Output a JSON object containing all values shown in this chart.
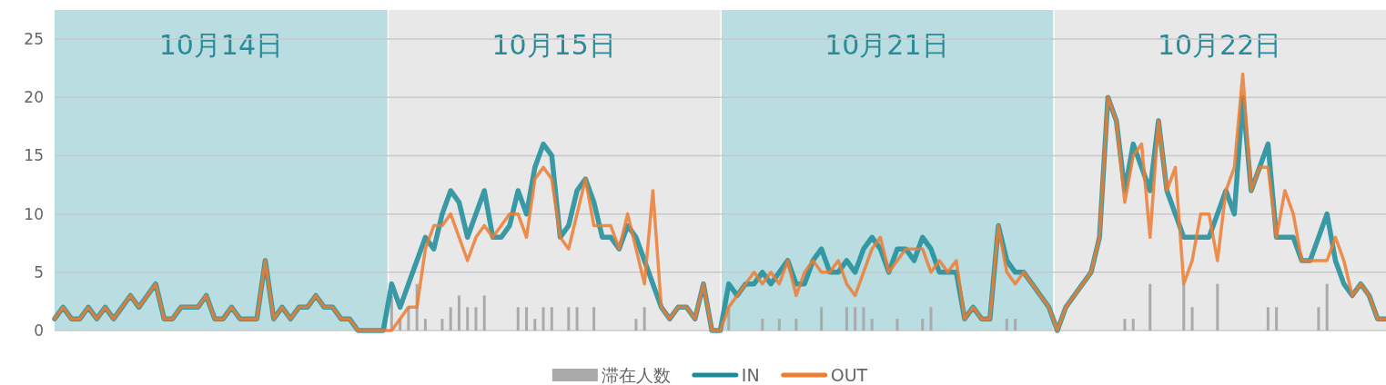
{
  "chart_data": {
    "type": "line",
    "categories": [
      null,
      null,
      null,
      null,
      null,
      null,
      null,
      null,
      null,
      null,
      null,
      null,
      null,
      null,
      null,
      null,
      null,
      null,
      null,
      null,
      null,
      null,
      null,
      null,
      null,
      null,
      null,
      null,
      null,
      null,
      null,
      null,
      null,
      null,
      null,
      null,
      null,
      null,
      null,
      null,
      null,
      null,
      null,
      null,
      null,
      null,
      null,
      null,
      null,
      null,
      null,
      null,
      null,
      null,
      null,
      null,
      null,
      null,
      null,
      null,
      null,
      null,
      null,
      null,
      null,
      null,
      null,
      null,
      null,
      null,
      null,
      null,
      null,
      null,
      null,
      null,
      null,
      null,
      null,
      null,
      null,
      null,
      null,
      null,
      null,
      null,
      null,
      null,
      null,
      null,
      null,
      null,
      null,
      null,
      null,
      null,
      null,
      null,
      null,
      null,
      null,
      null,
      null,
      null,
      null,
      null,
      null,
      null,
      null,
      null,
      null,
      null,
      null,
      null,
      null,
      null,
      null,
      null,
      null,
      null,
      null,
      null,
      null,
      null,
      null,
      null,
      null,
      null,
      null,
      null,
      null,
      null,
      null,
      null,
      null,
      null,
      null,
      null,
      null,
      null,
      null,
      null,
      null,
      null,
      null,
      null,
      null,
      null,
      null,
      null,
      null,
      null,
      null,
      null,
      null,
      null,
      null,
      null,
      null
    ],
    "series": [
      {
        "name": "滞在人数",
        "type": "bar",
        "color": "#aaaaaa",
        "values": [
          0,
          0,
          0,
          0,
          0,
          0,
          0,
          0,
          0,
          0,
          0,
          0,
          0,
          0,
          0,
          0,
          0,
          0,
          0,
          0,
          0,
          0,
          0,
          0,
          0,
          0,
          0,
          0,
          0,
          0,
          0,
          0,
          0,
          0,
          0,
          0,
          0,
          0,
          0,
          0,
          3,
          1,
          2,
          4,
          1,
          0,
          1,
          2,
          3,
          2,
          2,
          3,
          0,
          0,
          0,
          2,
          2,
          1,
          2,
          2,
          0,
          2,
          2,
          0,
          2,
          0,
          0,
          0,
          0,
          1,
          2,
          0,
          0,
          0,
          0,
          0,
          0,
          0,
          0,
          0,
          2,
          0,
          0,
          0,
          1,
          0,
          1,
          0,
          1,
          0,
          0,
          2,
          0,
          0,
          2,
          2,
          2,
          1,
          0,
          0,
          1,
          0,
          0,
          1,
          2,
          0,
          0,
          0,
          0,
          0,
          0,
          0,
          0,
          1,
          1,
          0,
          0,
          0,
          0,
          0,
          0,
          0,
          0,
          0,
          0,
          0,
          0,
          1,
          1,
          0,
          4,
          0,
          0,
          0,
          4,
          2,
          0,
          0,
          4,
          0,
          0,
          0,
          0,
          0,
          2,
          2,
          0,
          0,
          0,
          0,
          2,
          4,
          0,
          0,
          0,
          0,
          0,
          0,
          0
        ]
      },
      {
        "name": "IN",
        "color": "#1a8c99",
        "values": [
          1,
          2,
          1,
          1,
          2,
          1,
          2,
          1,
          2,
          3,
          2,
          3,
          4,
          1,
          1,
          2,
          2,
          2,
          3,
          1,
          1,
          2,
          1,
          1,
          1,
          6,
          1,
          2,
          1,
          2,
          2,
          3,
          2,
          2,
          1,
          1,
          0,
          0,
          0,
          0,
          4,
          2,
          4,
          6,
          8,
          7,
          10,
          12,
          11,
          8,
          10,
          12,
          8,
          8,
          9,
          12,
          10,
          14,
          16,
          15,
          8,
          9,
          12,
          13,
          11,
          8,
          8,
          7,
          9,
          8,
          6,
          4,
          2,
          1,
          2,
          2,
          1,
          4,
          0,
          0,
          4,
          3,
          4,
          4,
          5,
          4,
          5,
          6,
          4,
          4,
          6,
          7,
          5,
          5,
          6,
          5,
          7,
          8,
          7,
          5,
          7,
          7,
          6,
          8,
          7,
          5,
          5,
          5,
          1,
          2,
          1,
          1,
          9,
          6,
          5,
          5,
          4,
          3,
          2,
          0,
          2,
          3,
          4,
          5,
          8,
          20,
          18,
          12,
          16,
          14,
          12,
          18,
          12,
          10,
          8,
          8,
          8,
          8,
          10,
          12,
          10,
          20,
          12,
          14,
          16,
          8,
          8,
          8,
          6,
          6,
          8,
          10,
          6,
          4,
          3,
          4,
          3,
          1,
          1
        ]
      },
      {
        "name": "OUT",
        "color": "#ed7d31",
        "values": [
          1,
          2,
          1,
          1,
          2,
          1,
          2,
          1,
          2,
          3,
          2,
          3,
          4,
          1,
          1,
          2,
          2,
          2,
          3,
          1,
          1,
          2,
          1,
          1,
          1,
          6,
          1,
          2,
          1,
          2,
          2,
          3,
          2,
          2,
          1,
          1,
          0,
          0,
          0,
          0,
          0,
          1,
          2,
          2,
          7,
          9,
          9,
          10,
          8,
          6,
          8,
          9,
          8,
          9,
          10,
          10,
          8,
          13,
          14,
          13,
          8,
          7,
          10,
          13,
          9,
          9,
          9,
          7,
          10,
          7,
          4,
          12,
          2,
          1,
          2,
          2,
          1,
          4,
          0,
          0,
          2,
          3,
          4,
          5,
          4,
          5,
          4,
          6,
          3,
          5,
          6,
          5,
          5,
          6,
          4,
          3,
          5,
          7,
          8,
          5,
          6,
          7,
          7,
          7,
          5,
          6,
          5,
          6,
          1,
          2,
          1,
          1,
          9,
          5,
          4,
          5,
          4,
          3,
          2,
          0,
          2,
          3,
          4,
          5,
          8,
          20,
          18,
          11,
          15,
          16,
          8,
          18,
          12,
          14,
          4,
          6,
          10,
          10,
          6,
          12,
          14,
          22,
          12,
          14,
          14,
          8,
          12,
          10,
          6,
          6,
          6,
          6,
          8,
          6,
          3,
          4,
          3,
          1,
          1
        ]
      }
    ],
    "ylim": [
      0,
      27.5
    ],
    "yticks": [
      0,
      5,
      10,
      15,
      20,
      25
    ],
    "annotations": [
      "10月14日",
      "10月15日",
      "10月21日",
      "10月22日"
    ],
    "grid": "y",
    "legend": "bottom",
    "tick_labels": "y"
  }
}
